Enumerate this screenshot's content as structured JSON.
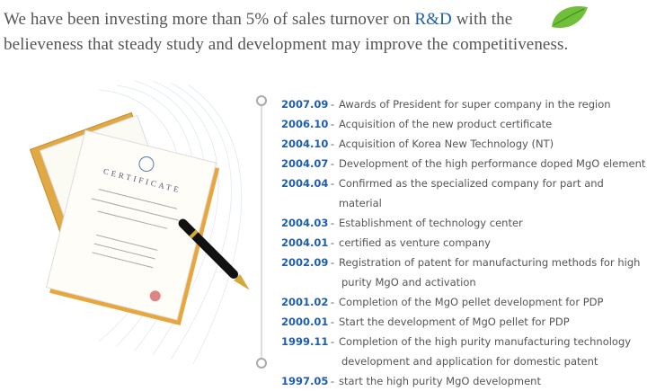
{
  "intro": {
    "line1": [
      "We have been investing more than 5% of sales turnover on ",
      "R&D",
      " with the"
    ],
    "line2": "believeness that steady study and development may improve the competitiveness."
  },
  "separator": "-",
  "timeline": [
    {
      "date": "2007.09",
      "text": [
        "Awards of President for super company in the region"
      ]
    },
    {
      "date": "2006.10",
      "text": [
        "Acquisition of the new product certificate"
      ]
    },
    {
      "date": "2004.10",
      "text": [
        "Acquisition of Korea New Technology (NT)"
      ]
    },
    {
      "date": "2004.07",
      "text": [
        "Development of the high performance doped MgO element"
      ]
    },
    {
      "date": "2004.04",
      "text": [
        "Confirmed as the specialized company for part and material"
      ]
    },
    {
      "date": "2004.03",
      "text": [
        "Establishment of technology center"
      ]
    },
    {
      "date": "2004.01",
      "text": [
        "certified as venture company"
      ]
    },
    {
      "date": "2002.09",
      "text": [
        "Registration of patent for manufacturing methods for high",
        "purity MgO and activation"
      ]
    },
    {
      "date": "2001.02",
      "text": [
        "Completion of the MgO pellet development for PDP"
      ]
    },
    {
      "date": "2000.01",
      "text": [
        "Start the development of MgO pellet for PDP"
      ]
    },
    {
      "date": "1999.11",
      "text": [
        "Completion of the high purity manufacturing technology",
        "development and application for domestic patent"
      ]
    },
    {
      "date": "1997.05",
      "text": [
        "start the high purity MgO development"
      ]
    }
  ]
}
